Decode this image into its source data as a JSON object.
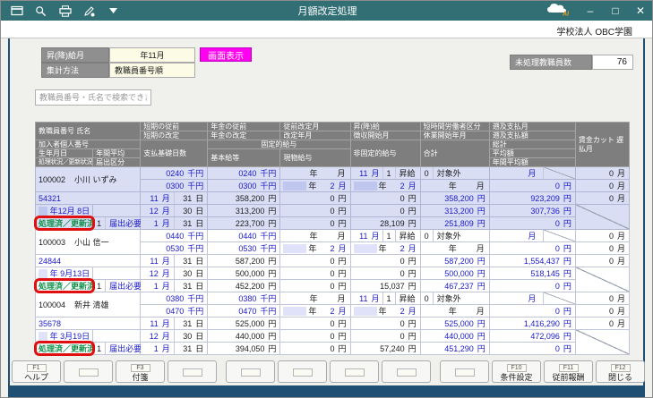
{
  "window": {
    "title": "月額改定処理",
    "company": "学校法人 OBC学園",
    "logo_label": "AI",
    "controls": {
      "minimize": "–",
      "maximize": "□",
      "close": "✕"
    }
  },
  "toolbar": {
    "icons": [
      "new-window",
      "search",
      "print",
      "edit",
      "menu-dropdown"
    ]
  },
  "form": {
    "raise_month_label": "昇(降)給月",
    "raise_month_value": "年11月",
    "aggregation_label": "集計方法",
    "aggregation_value": "教職員番号順",
    "display_button": "画面表示",
    "unprocessed_label": "未処理教職員数",
    "unprocessed_value": "76"
  },
  "search": {
    "placeholder": "教職員番号・氏名で検索できます"
  },
  "table": {
    "units": {
      "year": "年",
      "month": "月",
      "day": "日",
      "yen": "円",
      "kyen": "千円"
    },
    "header": {
      "emp_no_name": "教職員番号  氏名",
      "short_prev": "短期の従前",
      "short_rev": "短期の改定",
      "pension_prev": "年金の従前",
      "pension_rev": "年金の改定",
      "prev_rev_month": "従前改定月",
      "rev_month": "改定年月",
      "raise": "昇(降)給",
      "collect_start": "徴収開始月",
      "short_worker": "短時間労働者区分",
      "leave_start": "休業開始年月",
      "retro_month": "遡及支払月",
      "retro_amount": "遡及支払額",
      "member_no": "加入者個人番号",
      "payment_days": "支払基礎日数",
      "fixed_salary": "固定的給与",
      "birth_date": "生年月日",
      "annual_avg": "年間平均",
      "base_salary": "基本給等",
      "in_kind": "現物給与",
      "status": "処理状況／更新状況",
      "report_class": "届出区分",
      "non_fixed": "非固定的給与",
      "total": "合計",
      "grand_total": "総計",
      "average": "平均額",
      "annual_average": "年間平均額",
      "wage_cut": "賃金カット 遅払月"
    },
    "employees": [
      {
        "selected": true,
        "id": "100002",
        "name": "小川  いずみ",
        "member_no": "54321",
        "birth_date": "年12月 8日",
        "status": "処理済／更新済",
        "report_flag": "1",
        "report_label": "届出必要",
        "short_prev": "0240",
        "short_rev": "0300",
        "pension_prev": "0240",
        "pension_rev": "0300",
        "raise_month": "11",
        "raise_code": "1",
        "raise_label": "昇給",
        "worker_code": "0",
        "worker_label": "対象外",
        "revision_month": "2",
        "collection_month": "2",
        "retro_amount": "0",
        "days": [
          [
            "11",
            "31"
          ],
          [
            "12",
            "30"
          ],
          [
            "1",
            "31"
          ]
        ],
        "base_salary": [
          "358,200",
          "313,200",
          "223,700"
        ],
        "in_kind": [
          "0",
          "0",
          "0"
        ],
        "non_fixed": [
          "0",
          "0",
          "28,109"
        ],
        "total": [
          "358,200",
          "313,200",
          "251,809"
        ],
        "grand_total": "923,209",
        "average": "307,736",
        "annual_average": "0",
        "wage_cut": [
          "0",
          "0",
          "0"
        ]
      },
      {
        "selected": false,
        "id": "100003",
        "name": "小山  信一",
        "member_no": "24844",
        "birth_date": "年 9月13日",
        "status": "処理済／更新済",
        "report_flag": "1",
        "report_label": "届出必要",
        "short_prev": "0440",
        "short_rev": "0530",
        "pension_prev": "0440",
        "pension_rev": "0530",
        "raise_month": "11",
        "raise_code": "1",
        "raise_label": "昇給",
        "worker_code": "0",
        "worker_label": "対象外",
        "revision_month": "2",
        "collection_month": "2",
        "retro_amount": "0",
        "days": [
          [
            "11",
            "31"
          ],
          [
            "12",
            "30"
          ],
          [
            "1",
            "31"
          ]
        ],
        "base_salary": [
          "587,200",
          "500,000",
          "452,200"
        ],
        "in_kind": [
          "0",
          "0",
          "0"
        ],
        "non_fixed": [
          "0",
          "0",
          "15,037"
        ],
        "total": [
          "587,200",
          "500,000",
          "467,237"
        ],
        "grand_total": "1,554,437",
        "average": "518,145",
        "annual_average": "0",
        "wage_cut": [
          "0",
          "0",
          "0"
        ]
      },
      {
        "selected": false,
        "id": "100004",
        "name": "新井  清雄",
        "member_no": "35678",
        "birth_date": "年 3月19日",
        "status": "処理済／更新済",
        "report_flag": "1",
        "report_label": "届出必要",
        "short_prev": "0380",
        "short_rev": "0470",
        "pension_prev": "0380",
        "pension_rev": "0470",
        "raise_month": "11",
        "raise_code": "1",
        "raise_label": "昇給",
        "worker_code": "0",
        "worker_label": "対象外",
        "revision_month": "2",
        "collection_month": "2",
        "retro_amount": "0",
        "days": [
          [
            "11",
            "31"
          ],
          [
            "12",
            "30"
          ],
          [
            "1",
            "31"
          ]
        ],
        "base_salary": [
          "525,000",
          "440,000",
          "394,050"
        ],
        "in_kind": [
          "0",
          "0",
          "0"
        ],
        "non_fixed": [
          "0",
          "0",
          "57,240"
        ],
        "total": [
          "525,000",
          "440,000",
          "451,290"
        ],
        "grand_total": "1,416,290",
        "average": "472,096",
        "annual_average": "0",
        "wage_cut": [
          "0",
          "0",
          "0"
        ]
      }
    ]
  },
  "function_keys": [
    {
      "key": "F1",
      "label": "ヘルプ"
    },
    {
      "key": "",
      "label": ""
    },
    {
      "key": "F3",
      "label": "付箋"
    },
    {
      "key": "",
      "label": ""
    },
    {
      "key": "",
      "label": ""
    },
    {
      "key": "",
      "label": ""
    },
    {
      "key": "",
      "label": ""
    },
    {
      "key": "",
      "label": ""
    },
    {
      "key": "",
      "label": ""
    },
    {
      "key": "F10",
      "label": "条件設定"
    },
    {
      "key": "F11",
      "label": "従前報酬"
    },
    {
      "key": "F12",
      "label": "閉じる"
    }
  ]
}
